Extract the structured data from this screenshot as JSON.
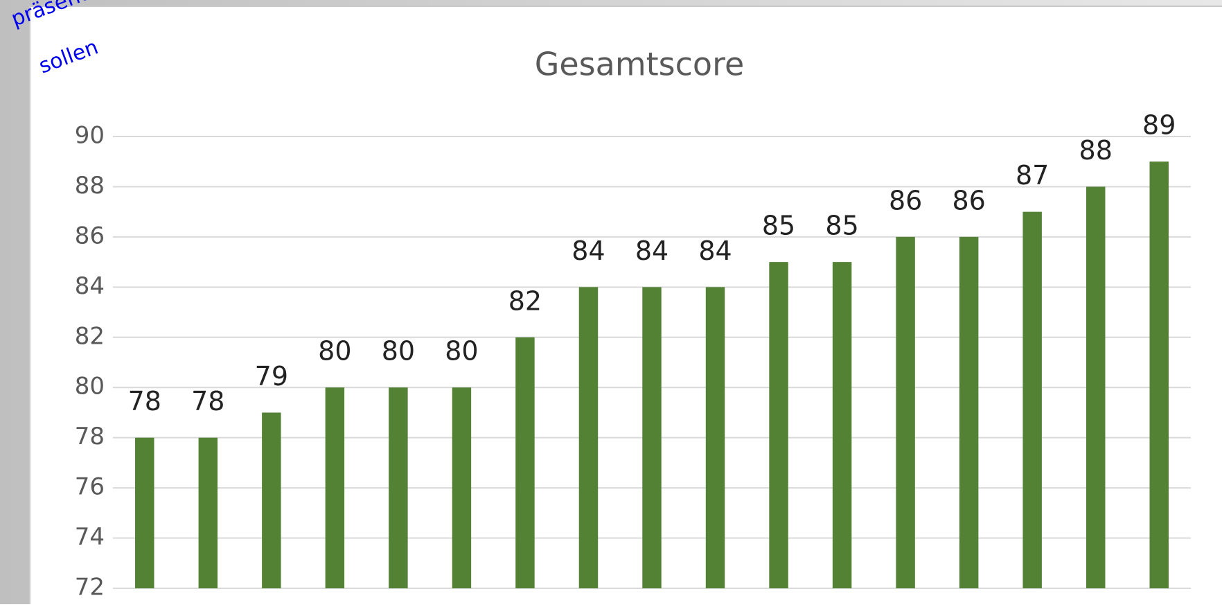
{
  "chart_data": {
    "type": "bar",
    "title": "Gesamtscore",
    "annotation": [
      "präsent",
      "sollen"
    ],
    "categories": [
      null,
      null,
      null,
      null,
      null,
      null,
      null,
      null,
      null,
      null,
      null,
      null,
      null,
      null,
      null,
      null,
      null
    ],
    "values": [
      78,
      78,
      79,
      80,
      80,
      80,
      82,
      84,
      84,
      84,
      85,
      85,
      86,
      86,
      87,
      88,
      89
    ],
    "color": "#548235",
    "ylim": [
      72,
      90
    ],
    "yticks": [
      72,
      74,
      76,
      78,
      80,
      82,
      84,
      86,
      88,
      90
    ],
    "grid": true,
    "data_labels": true
  }
}
